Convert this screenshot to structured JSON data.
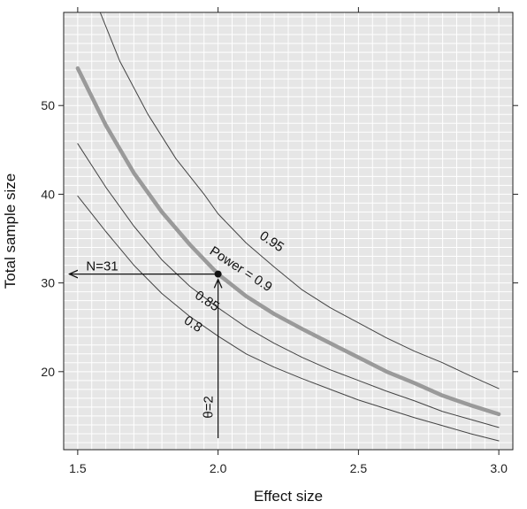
{
  "chart_data": {
    "type": "line",
    "xlabel": "Effect size",
    "ylabel": "Total sample size",
    "xlim": [
      1.45,
      3.05
    ],
    "ylim": [
      11.2,
      60.5
    ],
    "x_ticks": [
      1.5,
      2.0,
      2.5,
      3.0
    ],
    "x_tick_labels": [
      "1.5",
      "2.0",
      "2.5",
      "3.0"
    ],
    "y_ticks": [
      20,
      30,
      40,
      50
    ],
    "y_tick_labels": [
      "20",
      "30",
      "40",
      "50"
    ],
    "grid": true,
    "minor_gridlines_x_step": 0.05,
    "minor_gridlines_y_step": 1,
    "background_color": "#e6e6e6",
    "grid_color": "#ffffff",
    "series": [
      {
        "name": "0.95",
        "highlight": false,
        "color": "#444444",
        "x": [
          1.58,
          1.65,
          1.75,
          1.85,
          1.95,
          2.0,
          2.1,
          2.2,
          2.3,
          2.4,
          2.5,
          2.6,
          2.7,
          2.8,
          2.9,
          3.0
        ],
        "y": [
          60.5,
          55.0,
          49.0,
          44.0,
          40.0,
          37.8,
          34.5,
          31.8,
          29.2,
          27.2,
          25.5,
          23.8,
          22.3,
          21.0,
          19.5,
          18.1
        ]
      },
      {
        "name": "Power = 0.9",
        "highlight": true,
        "color": "#9a9a9a",
        "x": [
          1.5,
          1.6,
          1.7,
          1.8,
          1.9,
          2.0,
          2.1,
          2.2,
          2.3,
          2.4,
          2.5,
          2.6,
          2.7,
          2.8,
          2.9,
          3.0
        ],
        "y": [
          54.2,
          47.8,
          42.4,
          38.0,
          34.3,
          31.0,
          28.5,
          26.5,
          24.8,
          23.2,
          21.6,
          20.0,
          18.7,
          17.3,
          16.2,
          15.2
        ]
      },
      {
        "name": "0.85",
        "highlight": false,
        "color": "#444444",
        "x": [
          1.5,
          1.6,
          1.7,
          1.8,
          1.9,
          2.0,
          2.1,
          2.2,
          2.3,
          2.4,
          2.5,
          2.6,
          2.7,
          2.8,
          2.9,
          3.0
        ],
        "y": [
          45.7,
          40.8,
          36.4,
          32.6,
          29.6,
          27.2,
          25.0,
          23.2,
          21.6,
          20.2,
          19.0,
          17.8,
          16.7,
          15.5,
          14.6,
          13.7
        ]
      },
      {
        "name": "0.8",
        "highlight": false,
        "color": "#444444",
        "x": [
          1.5,
          1.6,
          1.7,
          1.8,
          1.9,
          2.0,
          2.1,
          2.2,
          2.3,
          2.4,
          2.5,
          2.6,
          2.7,
          2.8,
          2.9,
          3.0
        ],
        "y": [
          39.8,
          35.8,
          32.0,
          28.8,
          26.2,
          24.0,
          22.0,
          20.5,
          19.2,
          18.0,
          16.8,
          15.8,
          14.8,
          13.9,
          13.0,
          12.2
        ]
      }
    ],
    "curve_labels": [
      {
        "text": "0.95",
        "x": 2.19,
        "y": 34.6,
        "angle": 34
      },
      {
        "text": "Power = 0.9",
        "x": 2.08,
        "y": 31.5,
        "angle": 33
      },
      {
        "text": "0.85",
        "x": 1.96,
        "y": 27.9,
        "angle": 33
      },
      {
        "text": "0.8",
        "x": 1.91,
        "y": 25.3,
        "angle": 33
      }
    ],
    "annotations": {
      "point": {
        "x": 2.0,
        "y": 31.0
      },
      "n_label": "N=31",
      "theta_label": "θ=2",
      "horizontal_arrow": {
        "from_x": 2.0,
        "to_x": 1.47,
        "y": 31.0
      },
      "vertical_arrow": {
        "from_y": 12.5,
        "to_y": 30.4,
        "x": 2.0
      }
    }
  }
}
